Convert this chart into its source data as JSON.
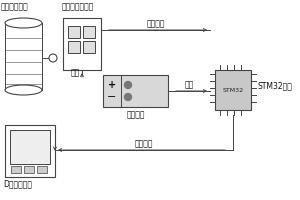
{
  "bg_color": "#ffffff",
  "line_color": "#444444",
  "text_color": "#111111",
  "labels": {
    "chem_module": "化学反应模块",
    "color_sensor": "颜色传感器模块",
    "battery": "电池模块",
    "lcd": "D显示屏模块",
    "stm32_label": "STM32单片",
    "stm32_inner": "STM32",
    "signal_out_top": "信号输出",
    "signal_out_bot": "信号输出",
    "power_left": "供电",
    "power_right": "供电"
  },
  "figsize": [
    3.0,
    2.0
  ],
  "dpi": 100
}
